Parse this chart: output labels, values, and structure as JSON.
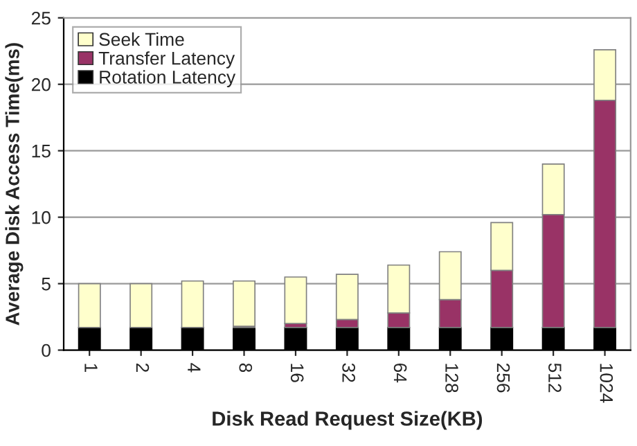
{
  "chart_data": {
    "type": "bar",
    "stacked": true,
    "xlabel": "Disk Read Request Size(KB)",
    "ylabel": "Average Disk Access Time(ms)",
    "categories": [
      "1",
      "2",
      "4",
      "8",
      "16",
      "32",
      "64",
      "128",
      "256",
      "512",
      "1024"
    ],
    "series": [
      {
        "name": "Rotation Latency",
        "color": "#000000",
        "values": [
          1.7,
          1.7,
          1.7,
          1.7,
          1.7,
          1.7,
          1.7,
          1.7,
          1.7,
          1.7,
          1.7
        ]
      },
      {
        "name": "Transfer Latency",
        "color": "#993366",
        "values": [
          null,
          null,
          null,
          0.1,
          0.3,
          0.6,
          1.1,
          2.1,
          4.3,
          8.5,
          17.1
        ]
      },
      {
        "name": "Seek Time",
        "color": "#ffffcc",
        "values": [
          3.3,
          3.3,
          3.5,
          3.4,
          3.5,
          3.4,
          3.6,
          3.6,
          3.6,
          3.8,
          3.8
        ]
      }
    ],
    "ylim": [
      0,
      25
    ],
    "yticks": [
      0,
      5,
      10,
      15,
      20,
      25
    ],
    "grid": "y",
    "legend": "top left"
  }
}
